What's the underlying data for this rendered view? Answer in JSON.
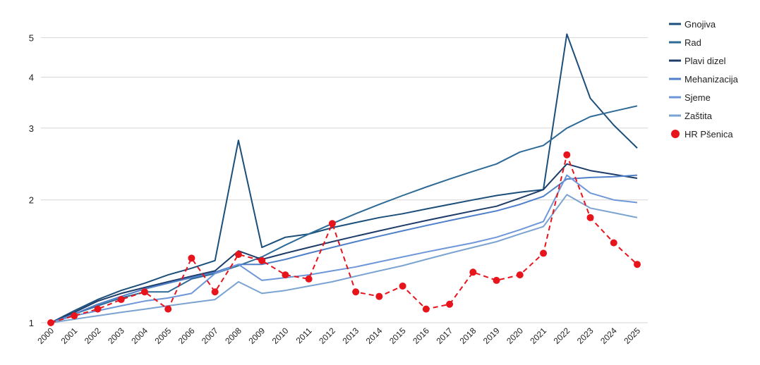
{
  "chart_data": {
    "type": "line",
    "title": "",
    "xlabel": "",
    "ylabel": "",
    "yscale": "log",
    "ylim": [
      1,
      5.4
    ],
    "y_ticks": [
      1,
      2,
      3,
      4,
      5
    ],
    "grid": "horizontal",
    "legend_position": "right",
    "x": [
      "2000",
      "2001",
      "2002",
      "2003",
      "2004",
      "2005",
      "2006",
      "2007",
      "2008",
      "2009",
      "2010",
      "2011",
      "2012",
      "2013",
      "2014",
      "2015",
      "2016",
      "2017",
      "2018",
      "2019",
      "2020",
      "2021",
      "2022",
      "2023",
      "2024",
      "2025"
    ],
    "series": [
      {
        "name": "Gnojiva",
        "color": "#1b4f7a",
        "style": "line",
        "values": [
          1.0,
          1.07,
          1.14,
          1.2,
          1.25,
          1.31,
          1.36,
          1.42,
          2.8,
          1.53,
          1.62,
          1.65,
          1.71,
          1.76,
          1.81,
          1.85,
          1.9,
          1.95,
          2.0,
          2.05,
          2.09,
          2.12,
          5.1,
          3.55,
          3.05,
          2.68
        ]
      },
      {
        "name": "Rad",
        "color": "#2e6a96",
        "style": "line",
        "values": [
          1.0,
          1.05,
          1.1,
          1.15,
          1.19,
          1.19,
          1.28,
          1.32,
          1.38,
          1.45,
          1.55,
          1.65,
          1.75,
          1.85,
          1.95,
          2.05,
          2.15,
          2.25,
          2.35,
          2.45,
          2.62,
          2.72,
          3.0,
          3.2,
          3.3,
          3.4
        ]
      },
      {
        "name": "Plavi dizel",
        "color": "#1e3c6a",
        "style": "line",
        "values": [
          1.0,
          1.06,
          1.13,
          1.18,
          1.22,
          1.26,
          1.3,
          1.34,
          1.5,
          1.43,
          1.48,
          1.53,
          1.58,
          1.63,
          1.68,
          1.73,
          1.78,
          1.83,
          1.88,
          1.93,
          2.02,
          2.12,
          2.45,
          2.36,
          2.31,
          2.26
        ]
      },
      {
        "name": "Mehanizacija",
        "color": "#4f7fc9",
        "style": "line",
        "values": [
          1.0,
          1.05,
          1.11,
          1.16,
          1.21,
          1.25,
          1.29,
          1.33,
          1.39,
          1.39,
          1.43,
          1.48,
          1.53,
          1.58,
          1.63,
          1.68,
          1.73,
          1.78,
          1.83,
          1.88,
          1.95,
          2.04,
          2.25,
          2.27,
          2.28,
          2.3
        ]
      },
      {
        "name": "Sjeme",
        "color": "#6e97d9",
        "style": "line",
        "values": [
          1.0,
          1.04,
          1.07,
          1.1,
          1.13,
          1.15,
          1.18,
          1.32,
          1.39,
          1.27,
          1.29,
          1.31,
          1.34,
          1.37,
          1.41,
          1.45,
          1.49,
          1.53,
          1.57,
          1.62,
          1.69,
          1.77,
          2.3,
          2.08,
          2.0,
          1.97
        ]
      },
      {
        "name": "Zaštita",
        "color": "#7aa3d1",
        "style": "line",
        "values": [
          1.0,
          1.02,
          1.04,
          1.06,
          1.08,
          1.1,
          1.12,
          1.14,
          1.26,
          1.18,
          1.2,
          1.23,
          1.26,
          1.3,
          1.34,
          1.38,
          1.43,
          1.48,
          1.53,
          1.58,
          1.65,
          1.72,
          2.06,
          1.91,
          1.86,
          1.81
        ]
      },
      {
        "name": "HR Pšenica",
        "color": "#e8141c",
        "style": "dashed-markers",
        "values": [
          1.0,
          1.04,
          1.08,
          1.14,
          1.19,
          1.08,
          1.44,
          1.19,
          1.47,
          1.42,
          1.31,
          1.28,
          1.75,
          1.19,
          1.16,
          1.23,
          1.08,
          1.11,
          1.33,
          1.27,
          1.31,
          1.48,
          2.58,
          1.81,
          1.57,
          1.39
        ]
      }
    ]
  }
}
